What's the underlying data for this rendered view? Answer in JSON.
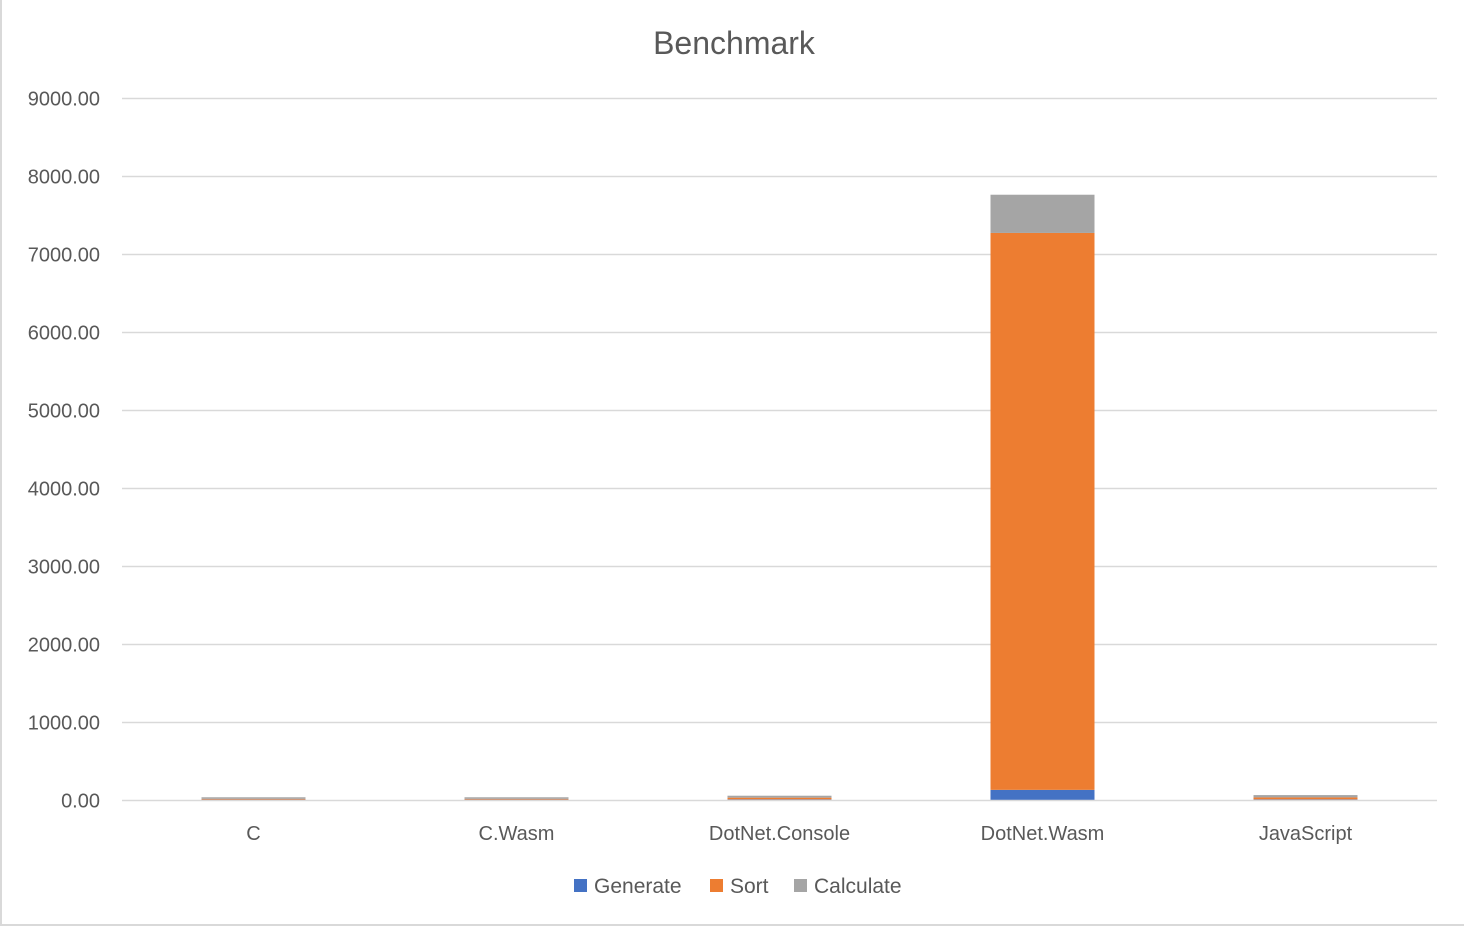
{
  "chart_data": {
    "type": "bar",
    "stacked": true,
    "title": "Benchmark",
    "xlabel": "",
    "ylabel": "",
    "categories": [
      "C",
      "C.Wasm",
      "DotNet.Console",
      "DotNet.Wasm",
      "JavaScript"
    ],
    "series": [
      {
        "name": "Generate",
        "color": "#4472C4",
        "values": [
          5,
          5,
          8,
          130,
          8
        ]
      },
      {
        "name": "Sort",
        "color": "#ED7D31",
        "values": [
          10,
          10,
          22,
          7140,
          25
        ]
      },
      {
        "name": "Calculate",
        "color": "#A5A5A5",
        "values": [
          20,
          20,
          25,
          490,
          30
        ]
      }
    ],
    "ylim": [
      0,
      9000
    ],
    "yticks": [
      0,
      1000,
      2000,
      3000,
      4000,
      5000,
      6000,
      7000,
      8000,
      9000
    ],
    "ytick_labels": [
      "0.00",
      "1000.00",
      "2000.00",
      "3000.00",
      "4000.00",
      "5000.00",
      "6000.00",
      "7000.00",
      "8000.00",
      "9000.00"
    ],
    "grid": true,
    "legend_position": "bottom"
  }
}
